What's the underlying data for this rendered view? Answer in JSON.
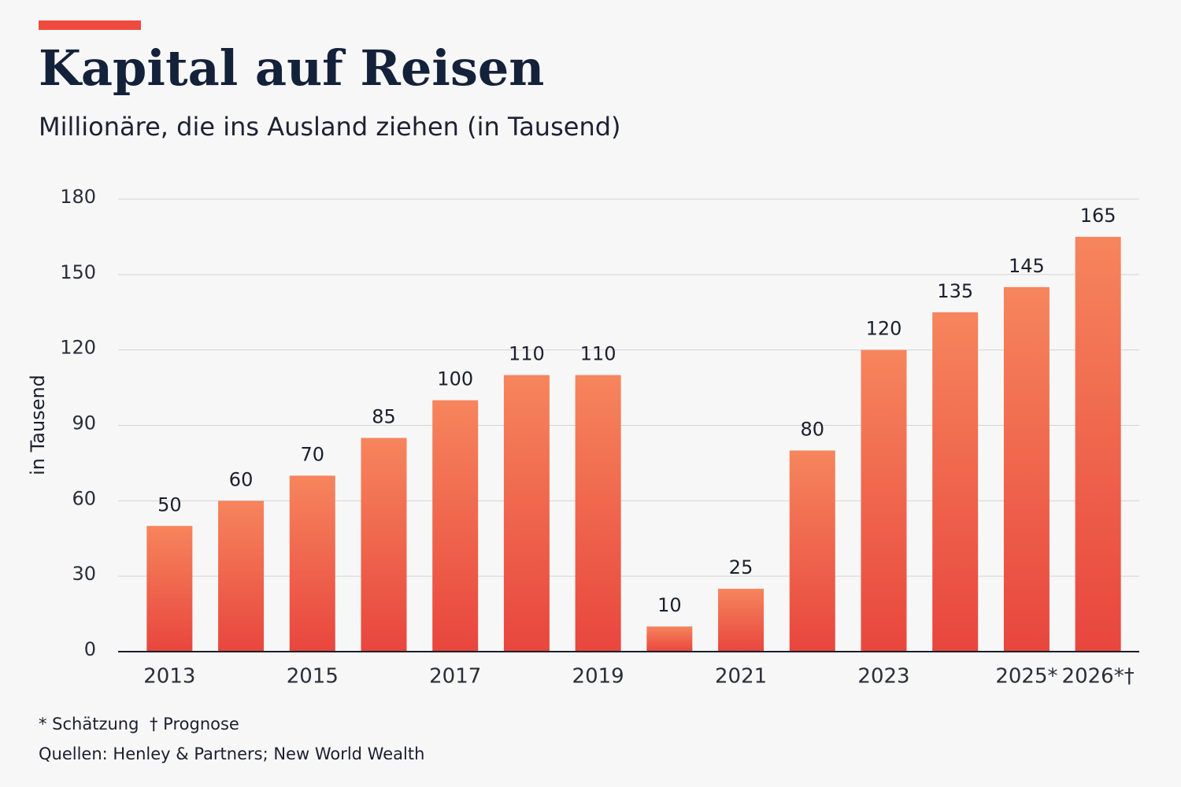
{
  "chart_data": {
    "type": "bar",
    "title": "Kapital auf Reisen",
    "subtitle": "Millionäre, die ins Ausland ziehen (in Tausend)",
    "y_label": "in Tausend",
    "categories": [
      "2013",
      null,
      "2015",
      null,
      "2017",
      null,
      "2019",
      null,
      "2021",
      null,
      "2023",
      null,
      "2025*",
      "2026*†"
    ],
    "values": [
      50,
      60,
      70,
      85,
      100,
      110,
      110,
      10,
      25,
      80,
      120,
      135,
      145,
      165
    ],
    "color": "#e8463d",
    "color_top": "#f6855d",
    "ylim": [
      0,
      180
    ],
    "yticks": [
      0,
      30,
      60,
      90,
      120,
      150,
      180
    ],
    "grid": true,
    "footnotes": [
      "* Schätzung",
      "† Prognose"
    ],
    "source": "Quellen: Henley & Partners; New World Wealth"
  }
}
